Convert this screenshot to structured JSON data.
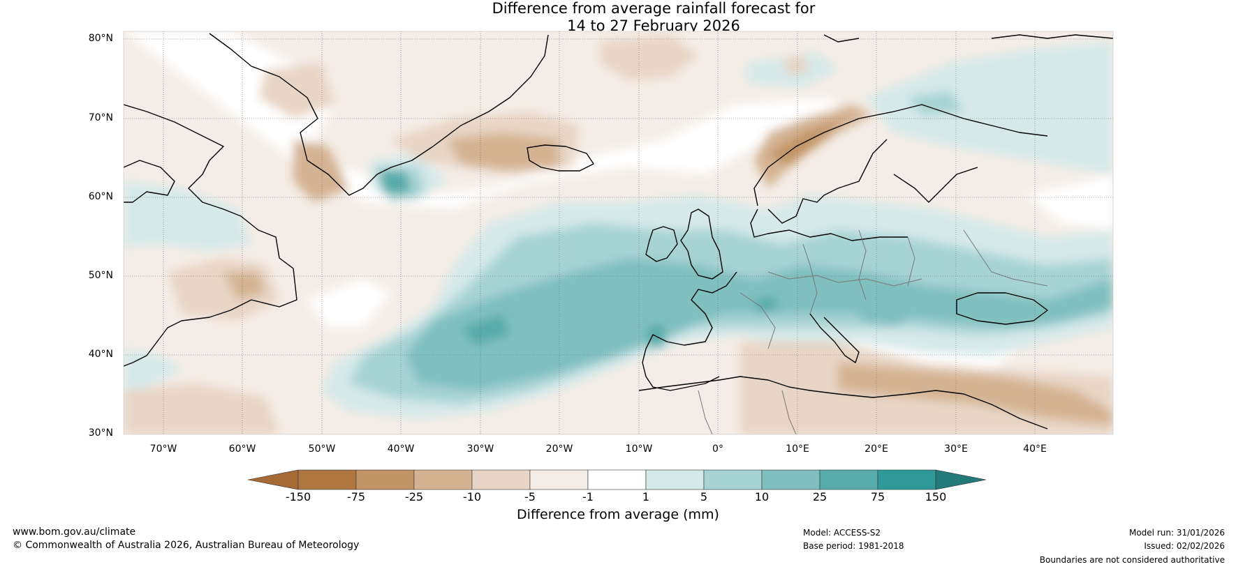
{
  "title": {
    "line1": "Difference from average rainfall forecast for",
    "line2": "14 to 27 February 2026"
  },
  "map": {
    "region": "North Atlantic and Europe",
    "lat_labels": [
      "80°N",
      "70°N",
      "60°N",
      "50°N",
      "40°N",
      "30°N"
    ],
    "lon_labels": [
      "70°W",
      "60°W",
      "50°W",
      "40°W",
      "30°W",
      "20°W",
      "10°W",
      "0°",
      "10°E",
      "20°E",
      "30°E",
      "40°E"
    ]
  },
  "legend": {
    "ticks": [
      "-150",
      "-75",
      "-25",
      "-10",
      "-5",
      "-1",
      "1",
      "5",
      "10",
      "25",
      "75",
      "150"
    ],
    "colors": [
      "#a56a35",
      "#b0763f",
      "#c29566",
      "#d4b393",
      "#e8d5c5",
      "#f4ede7",
      "#ffffff",
      "#d5e9e9",
      "#a7d3d3",
      "#80bfbf",
      "#57abab",
      "#309999",
      "#237a7a"
    ],
    "label": "Difference from average (mm)"
  },
  "footer": {
    "website": "www.bom.gov.au/climate",
    "copyright": "© Commonwealth of Australia 2026, Australian Bureau of Meteorology",
    "model": "Model: ACCESS-S2",
    "base_period": "Base period: 1981-2018",
    "model_run": "Model run: 31/01/2026",
    "issued": "Issued: 02/02/2026",
    "disclaimer": "Boundaries are not considered authoritative"
  }
}
